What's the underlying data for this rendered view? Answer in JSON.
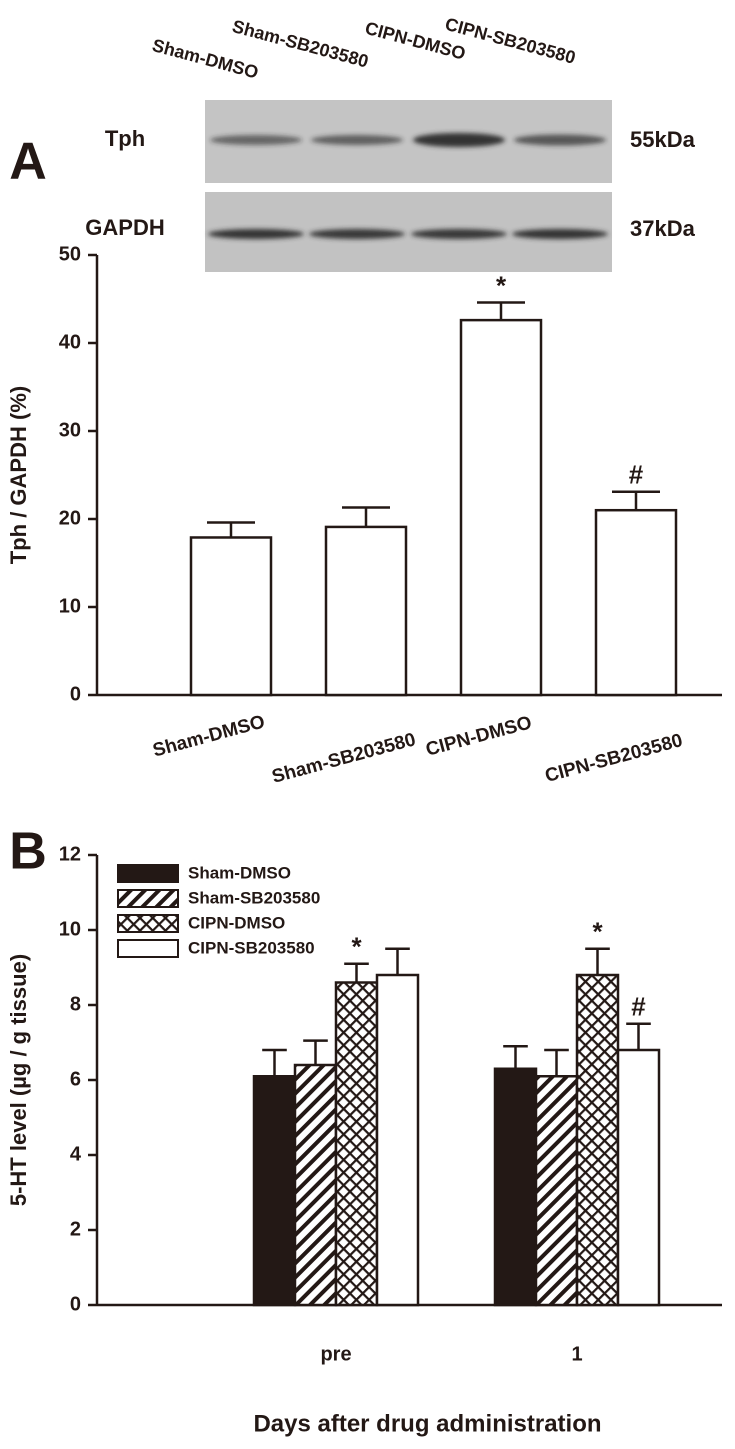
{
  "chart_data": [
    {
      "type": "bar",
      "panel": "A",
      "blot": {
        "lanes": [
          "Sham-DMSO",
          "Sham-SB203580",
          "CIPN-DMSO",
          "CIPN-SB203580"
        ],
        "rows": [
          {
            "name": "Tph",
            "size": "55kDa"
          },
          {
            "name": "GAPDH",
            "size": "37kDa"
          }
        ]
      },
      "ylabel": "Tph / GAPDH (%)",
      "categories": [
        "Sham-DMSO",
        "Sham-SB203580",
        "CIPN-DMSO",
        "CIPN-SB203580"
      ],
      "values": [
        17.9,
        19.1,
        42.6,
        21.0
      ],
      "errors": [
        1.7,
        2.2,
        2.0,
        2.1
      ],
      "markers": [
        null,
        null,
        "*",
        "#"
      ],
      "color": "#ffffff",
      "ylim": [
        0,
        50
      ],
      "yticks": [
        0,
        10,
        20,
        30,
        40,
        50
      ]
    },
    {
      "type": "grouped_bar",
      "panel": "B",
      "xlabel": "Days after drug administration",
      "ylabel": "5-HT level (µg / g tissue)",
      "categories": [
        "pre",
        "1"
      ],
      "series": [
        {
          "name": "Sham-DMSO",
          "color": "#231815",
          "fill": "solid",
          "values": [
            6.1,
            6.3
          ],
          "errors": [
            0.7,
            0.6
          ],
          "markers": [
            null,
            null
          ]
        },
        {
          "name": "Sham-SB203580",
          "color": "#231815",
          "fill": "diagonal",
          "values": [
            6.4,
            6.1
          ],
          "errors": [
            0.65,
            0.7
          ],
          "markers": [
            null,
            null
          ]
        },
        {
          "name": "CIPN-DMSO",
          "color": "#231815",
          "fill": "crosshatch",
          "values": [
            8.6,
            8.8
          ],
          "errors": [
            0.5,
            0.7
          ],
          "markers": [
            "*",
            "*"
          ]
        },
        {
          "name": "CIPN-SB203580",
          "color": "#ffffff",
          "fill": "solid",
          "values": [
            8.8,
            6.8
          ],
          "errors": [
            0.7,
            0.7
          ],
          "markers": [
            null,
            "#"
          ]
        }
      ],
      "legend": "upper left",
      "ylim": [
        0,
        12
      ],
      "yticks": [
        0,
        2,
        4,
        6,
        8,
        10,
        12
      ]
    }
  ]
}
